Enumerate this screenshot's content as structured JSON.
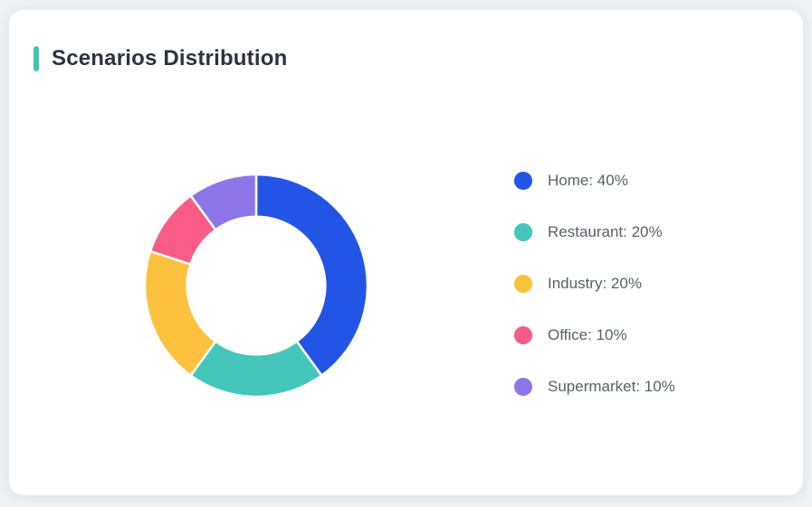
{
  "page": {
    "background": "#eff1f4",
    "card_background": "#ffffff"
  },
  "header": {
    "title": "Scenarios Distribution",
    "accent_color": "#3ec7b3",
    "title_color": "#2b3340"
  },
  "chart_data": {
    "type": "pie",
    "title": "Scenarios Distribution",
    "donut": true,
    "inner_radius_ratio": 0.62,
    "start_angle_deg": 0,
    "clockwise": true,
    "slice_gap_color": "#ffffff",
    "categories": [
      "Home",
      "Restaurant",
      "Industry",
      "Office",
      "Supermarket"
    ],
    "values": [
      40,
      20,
      20,
      10,
      10
    ],
    "unit": "%",
    "colors": [
      "#2254e6",
      "#45c6bb",
      "#fcc23d",
      "#f85c87",
      "#8d74e8"
    ],
    "legend": {
      "position": "right",
      "items": [
        {
          "label": "Home: 40%",
          "color": "#2254e6"
        },
        {
          "label": "Restaurant: 20%",
          "color": "#45c6bb"
        },
        {
          "label": "Industry: 20%",
          "color": "#fcc23d"
        },
        {
          "label": "Office: 10%",
          "color": "#f85c87"
        },
        {
          "label": "Supermarket: 10%",
          "color": "#8d74e8"
        }
      ]
    }
  }
}
